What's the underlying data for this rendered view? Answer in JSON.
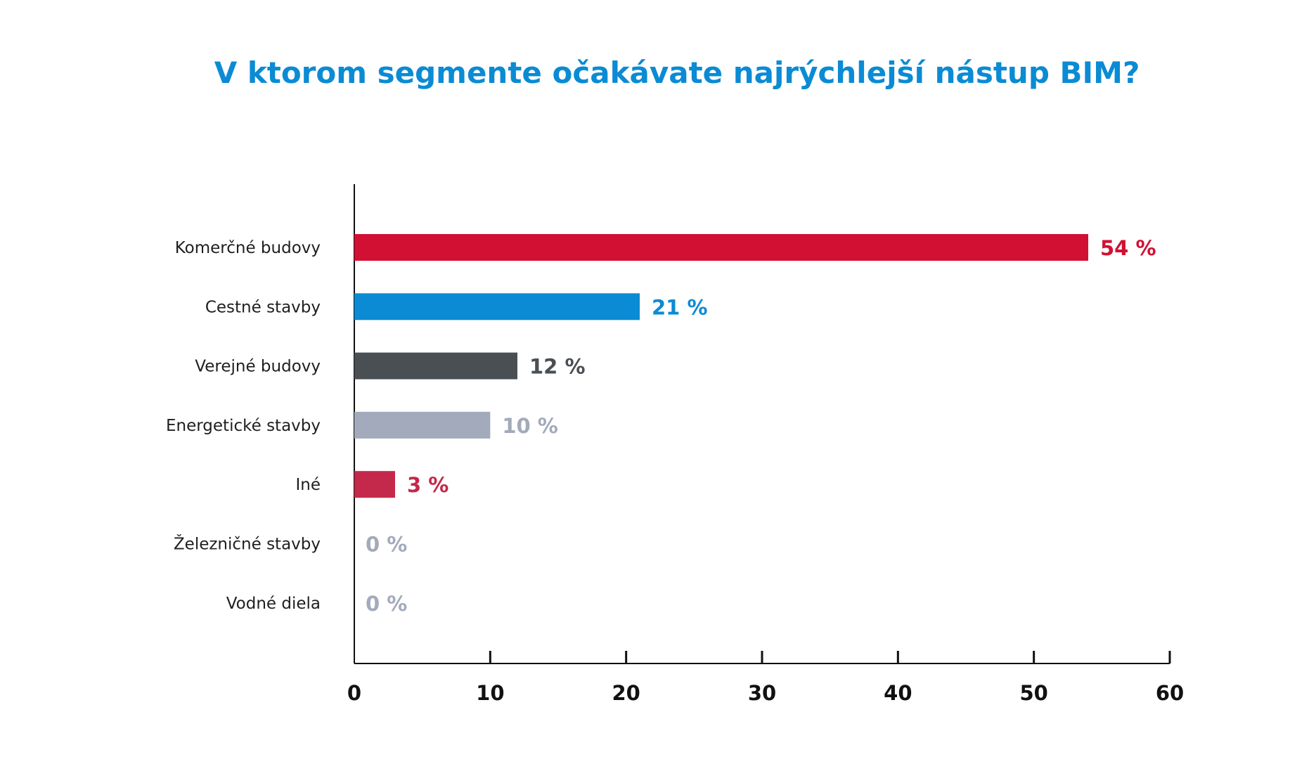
{
  "chart_data": {
    "type": "bar",
    "orientation": "horizontal",
    "title": "V ktorom segmente očakávate najrýchlejší nástup BIM?",
    "categories": [
      "Komerčné budovy",
      "Cestné stavby",
      "Verejné budovy",
      "Energetické stavby",
      "Iné",
      "Železničné stavby",
      "Vodné diela"
    ],
    "values": [
      54,
      21,
      12,
      10,
      3,
      0,
      0
    ],
    "value_labels": [
      "54 %",
      "21 %",
      "12 %",
      "10 %",
      "3 %",
      "0 %",
      "0 %"
    ],
    "xlim": [
      0,
      60
    ],
    "xticks": [
      0,
      10,
      20,
      30,
      40,
      50,
      60
    ],
    "xlabel": "",
    "ylabel": "",
    "grid": false,
    "colors": {
      "title": "#0A8BD4",
      "axis": "#111111",
      "bars": [
        "#D21033",
        "#0A8BD4",
        "#4A4F54",
        "#A2AABB",
        "#C4284A",
        "#A2AABB",
        "#A2AABB"
      ],
      "labels": [
        "#D21033",
        "#0A8BD4",
        "#4A4F54",
        "#A2AABB",
        "#C4284A",
        "#A2AABB",
        "#A2AABB"
      ]
    }
  }
}
